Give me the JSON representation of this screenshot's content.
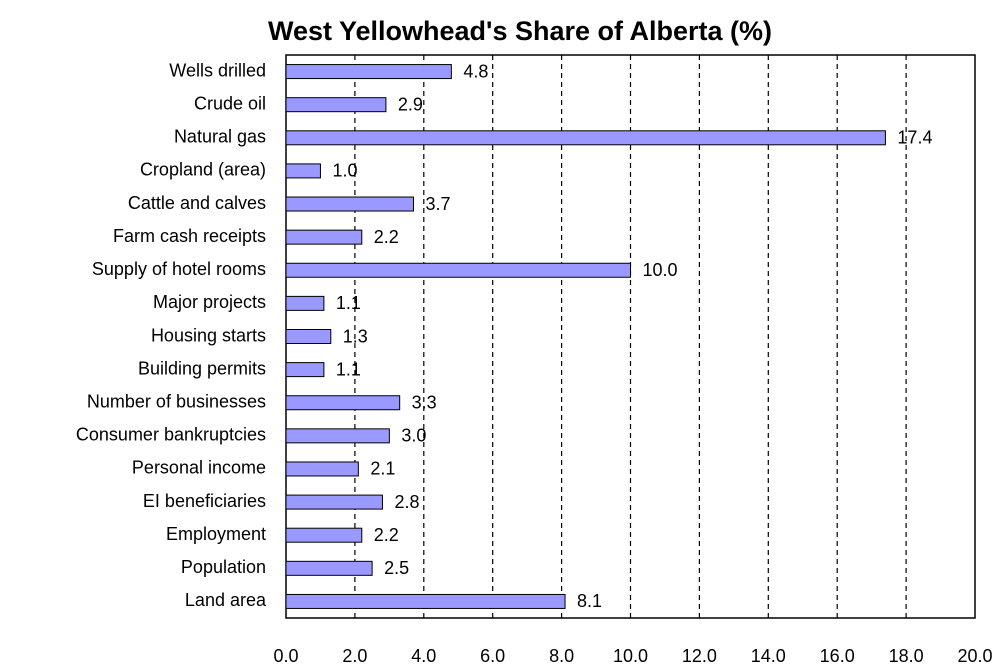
{
  "chart_data": {
    "type": "bar",
    "orientation": "horizontal",
    "title": "West Yellowhead's Share of Alberta (%)",
    "categories": [
      "Wells drilled",
      "Crude oil",
      "Natural gas",
      "Cropland (area)",
      "Cattle and calves",
      "Farm cash receipts",
      "Supply of hotel rooms",
      "Major projects",
      "Housing starts",
      "Building permits",
      "Number of businesses",
      "Consumer bankruptcies",
      "Personal income",
      "EI beneficiaries",
      "Employment",
      "Population",
      "Land area"
    ],
    "values": [
      4.8,
      2.9,
      17.4,
      1.0,
      3.7,
      2.2,
      10.0,
      1.1,
      1.3,
      1.1,
      3.3,
      3.0,
      2.1,
      2.8,
      2.2,
      2.5,
      8.1
    ],
    "value_labels": [
      "4.8",
      "2.9",
      "17.4",
      "1.0",
      "3.7",
      "2.2",
      "10.0",
      "1.1",
      "1.3",
      "1.1",
      "3.3",
      "3.0",
      "2.1",
      "2.8",
      "2.2",
      "2.5",
      "8.1"
    ],
    "color": "#9999ff",
    "xlim": [
      0,
      20
    ],
    "xticks": [
      {
        "value": 0,
        "label": "0.0"
      },
      {
        "value": 2,
        "label": "2.0"
      },
      {
        "value": 4,
        "label": "4.0"
      },
      {
        "value": 6,
        "label": "6.0"
      },
      {
        "value": 8,
        "label": "8.0"
      },
      {
        "value": 10,
        "label": "10.0"
      },
      {
        "value": 12,
        "label": "12.0"
      },
      {
        "value": 14,
        "label": "14.0"
      },
      {
        "value": 16,
        "label": "16.0"
      },
      {
        "value": 18,
        "label": "18.0"
      },
      {
        "value": 20,
        "label": "20.0"
      }
    ],
    "grid": true
  }
}
